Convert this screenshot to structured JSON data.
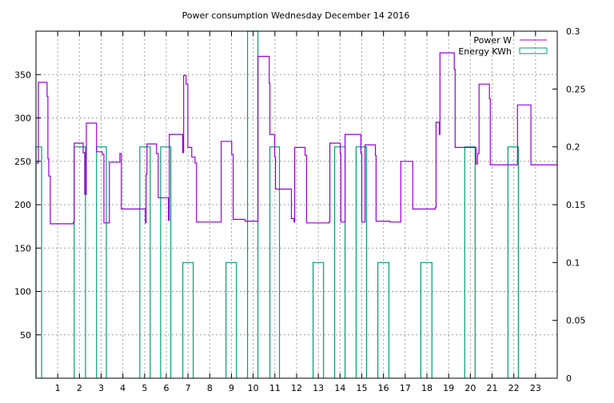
{
  "chart_data": {
    "type": "line",
    "title": "Power consumption Wednesday December 14 2016",
    "xlabel": "",
    "ylabel": "",
    "xlim": [
      0,
      24
    ],
    "ylim": [
      0,
      400
    ],
    "y2lim": [
      0,
      0.3
    ],
    "grid": true,
    "legend_position": "top-right",
    "x_ticks": [
      "1",
      "2",
      "3",
      "4",
      "5",
      "6",
      "7",
      "8",
      "9",
      "10",
      "11",
      "12",
      "13",
      "14",
      "15",
      "16",
      "17",
      "18",
      "19",
      "20",
      "21",
      "22",
      "23"
    ],
    "y_ticks": [
      "50",
      "100",
      "150",
      "200",
      "250",
      "300",
      "350"
    ],
    "y2_ticks": [
      "0",
      "0.05",
      "0.1",
      "0.15",
      "0.2",
      "0.25",
      "0.3"
    ],
    "colors": {
      "power": "#9400d3",
      "energy": "#009e73",
      "grid": "#a0a0a0"
    },
    "series": [
      {
        "name": "Power W",
        "style": "steps",
        "axis": "left",
        "points": [
          [
            0,
            248
          ],
          [
            0.11,
            341
          ],
          [
            0.51,
            325
          ],
          [
            0.55,
            253
          ],
          [
            0.59,
            233
          ],
          [
            0.66,
            178
          ],
          [
            1.73,
            180
          ],
          [
            1.76,
            271
          ],
          [
            2.17,
            260
          ],
          [
            2.24,
            212
          ],
          [
            2.32,
            294
          ],
          [
            2.79,
            261
          ],
          [
            3.05,
            258
          ],
          [
            3.13,
            179
          ],
          [
            3.38,
            249
          ],
          [
            3.86,
            259
          ],
          [
            3.93,
            195
          ],
          [
            5.04,
            179
          ],
          [
            5.07,
            235
          ],
          [
            5.11,
            270
          ],
          [
            5.55,
            259
          ],
          [
            5.63,
            208
          ],
          [
            6.1,
            182
          ],
          [
            6.14,
            281
          ],
          [
            6.76,
            260
          ],
          [
            6.8,
            349
          ],
          [
            6.91,
            339
          ],
          [
            6.99,
            266
          ],
          [
            7.17,
            255
          ],
          [
            7.32,
            248
          ],
          [
            7.39,
            180
          ],
          [
            8.53,
            273
          ],
          [
            9.01,
            258
          ],
          [
            9.08,
            183
          ],
          [
            9.63,
            181
          ],
          [
            10.22,
            371
          ],
          [
            10.74,
            340
          ],
          [
            10.77,
            281
          ],
          [
            10.99,
            255
          ],
          [
            11.03,
            218
          ],
          [
            11.76,
            184
          ],
          [
            11.88,
            180
          ],
          [
            11.91,
            266
          ],
          [
            12.39,
            257
          ],
          [
            12.46,
            179
          ],
          [
            13.49,
            180
          ],
          [
            13.53,
            271
          ],
          [
            14.01,
            259
          ],
          [
            14.04,
            180
          ],
          [
            14.23,
            281
          ],
          [
            14.96,
            259
          ],
          [
            15.0,
            180
          ],
          [
            15.15,
            269
          ],
          [
            15.63,
            257
          ],
          [
            15.66,
            181
          ],
          [
            16.29,
            180
          ],
          [
            16.8,
            250
          ],
          [
            17.35,
            195
          ],
          [
            18.38,
            197
          ],
          [
            18.42,
            295
          ],
          [
            18.57,
            281
          ],
          [
            18.6,
            375
          ],
          [
            19.26,
            356
          ],
          [
            19.3,
            266
          ],
          [
            20.26,
            247
          ],
          [
            20.33,
            259
          ],
          [
            20.4,
            339
          ],
          [
            20.88,
            322
          ],
          [
            20.92,
            246
          ],
          [
            22.17,
            315
          ],
          [
            22.79,
            246
          ],
          [
            24,
            246
          ]
        ]
      },
      {
        "name": "Energy KWh",
        "style": "boxes",
        "axis": "right",
        "bars": [
          [
            0,
            0.26,
            0.2
          ],
          [
            1.76,
            2.28,
            0.2
          ],
          [
            2.79,
            3.24,
            0.2
          ],
          [
            4.78,
            5.26,
            0.2
          ],
          [
            5.74,
            6.21,
            0.2
          ],
          [
            6.76,
            7.24,
            0.1
          ],
          [
            8.75,
            9.23,
            0.1
          ],
          [
            9.74,
            10.22,
            0.3
          ],
          [
            10.77,
            11.21,
            0.2
          ],
          [
            12.76,
            13.24,
            0.1
          ],
          [
            13.75,
            14.23,
            0.2
          ],
          [
            14.74,
            15.22,
            0.2
          ],
          [
            15.74,
            16.25,
            0.1
          ],
          [
            17.72,
            18.23,
            0.1
          ],
          [
            19.74,
            20.22,
            0.2
          ],
          [
            21.73,
            22.21,
            0.2
          ]
        ]
      }
    ]
  }
}
